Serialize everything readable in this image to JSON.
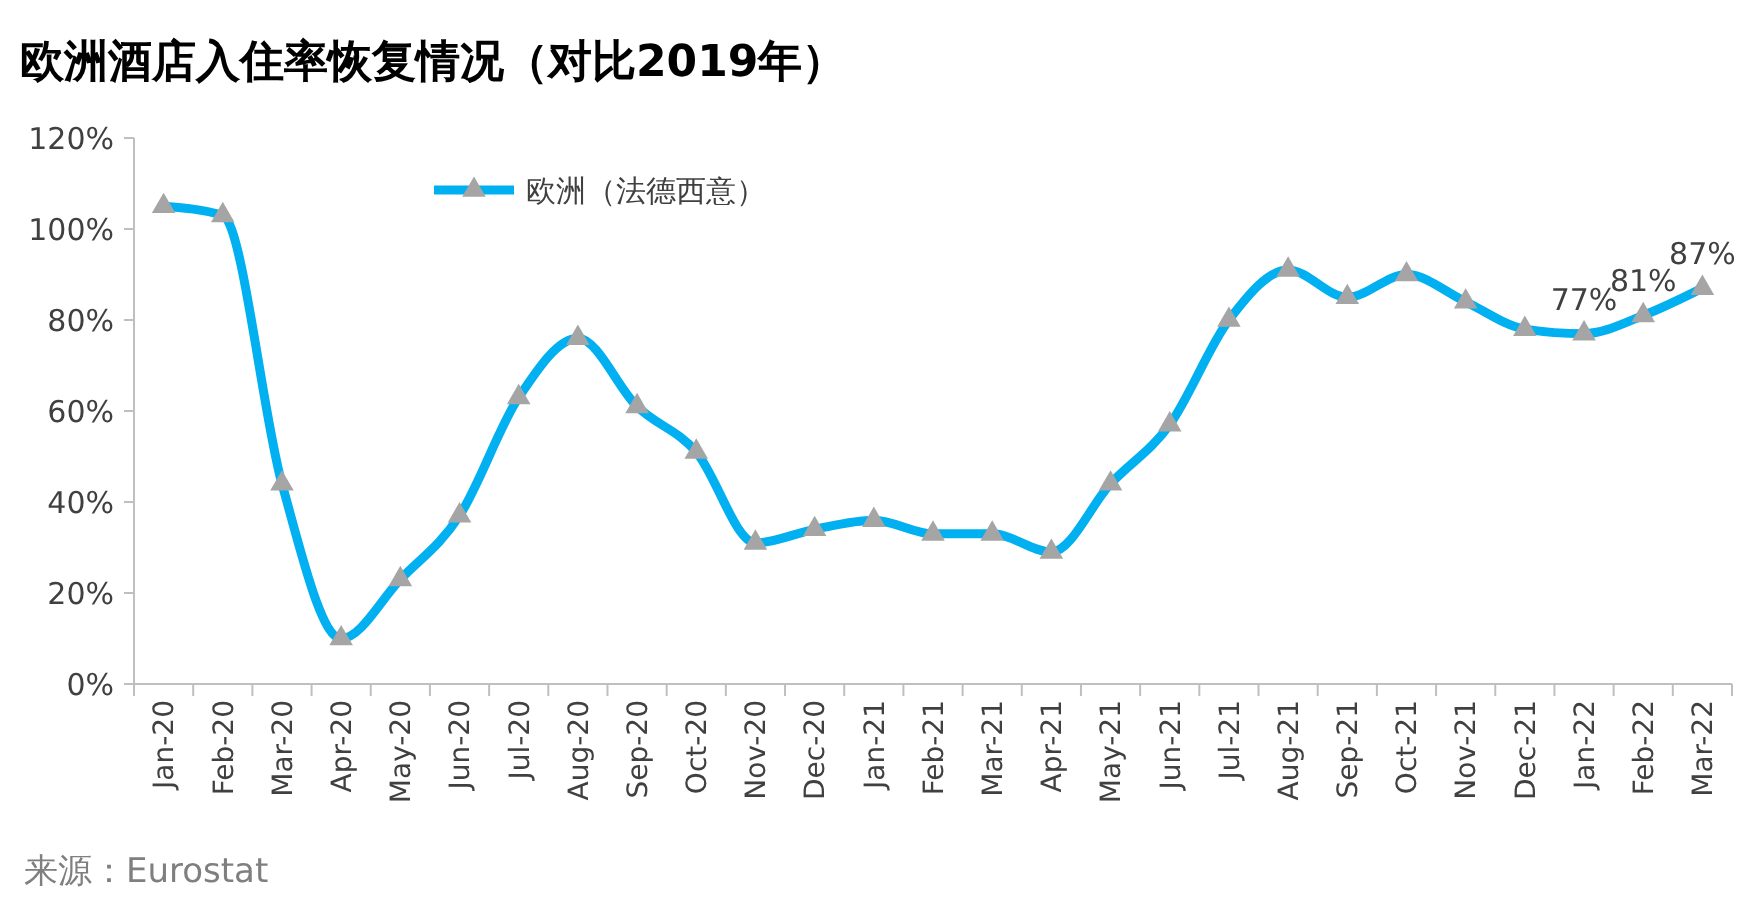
{
  "chart_data": {
    "type": "line",
    "title": "欧洲酒店入住率恢复情况（对比2019年）",
    "categories": [
      "Jan-20",
      "Feb-20",
      "Mar-20",
      "Apr-20",
      "May-20",
      "Jun-20",
      "Jul-20",
      "Aug-20",
      "Sep-20",
      "Oct-20",
      "Nov-20",
      "Dec-20",
      "Jan-21",
      "Feb-21",
      "Mar-21",
      "Apr-21",
      "May-21",
      "Jun-21",
      "Jul-21",
      "Aug-21",
      "Sep-21",
      "Oct-21",
      "Nov-21",
      "Dec-21",
      "Jan-22",
      "Feb-22",
      "Mar-22"
    ],
    "series": [
      {
        "name": "欧洲（法德西意）",
        "color": "#00b0f0",
        "values": [
          105,
          103,
          44,
          10,
          23,
          37,
          63,
          76,
          61,
          51,
          31,
          34,
          36,
          33,
          33,
          29,
          44,
          57,
          80,
          91,
          85,
          90,
          84,
          78,
          77,
          81,
          87
        ],
        "value_labels": [
          null,
          null,
          null,
          null,
          null,
          null,
          null,
          null,
          null,
          null,
          null,
          null,
          null,
          null,
          null,
          null,
          null,
          null,
          null,
          null,
          null,
          null,
          null,
          null,
          "77%",
          "81%",
          "87%"
        ]
      }
    ],
    "ylim": [
      0,
      120
    ],
    "yticks": [
      {
        "value": 0,
        "label": "0%"
      },
      {
        "value": 20,
        "label": "20%"
      },
      {
        "value": 40,
        "label": "40%"
      },
      {
        "value": 60,
        "label": "60%"
      },
      {
        "value": 80,
        "label": "80%"
      },
      {
        "value": 100,
        "label": "100%"
      },
      {
        "value": 120,
        "label": "120%"
      }
    ],
    "grid": false,
    "legend": "top left",
    "marker": "triangle",
    "line_style": "solid",
    "annotations": [
      "来源：Eurostat"
    ]
  }
}
